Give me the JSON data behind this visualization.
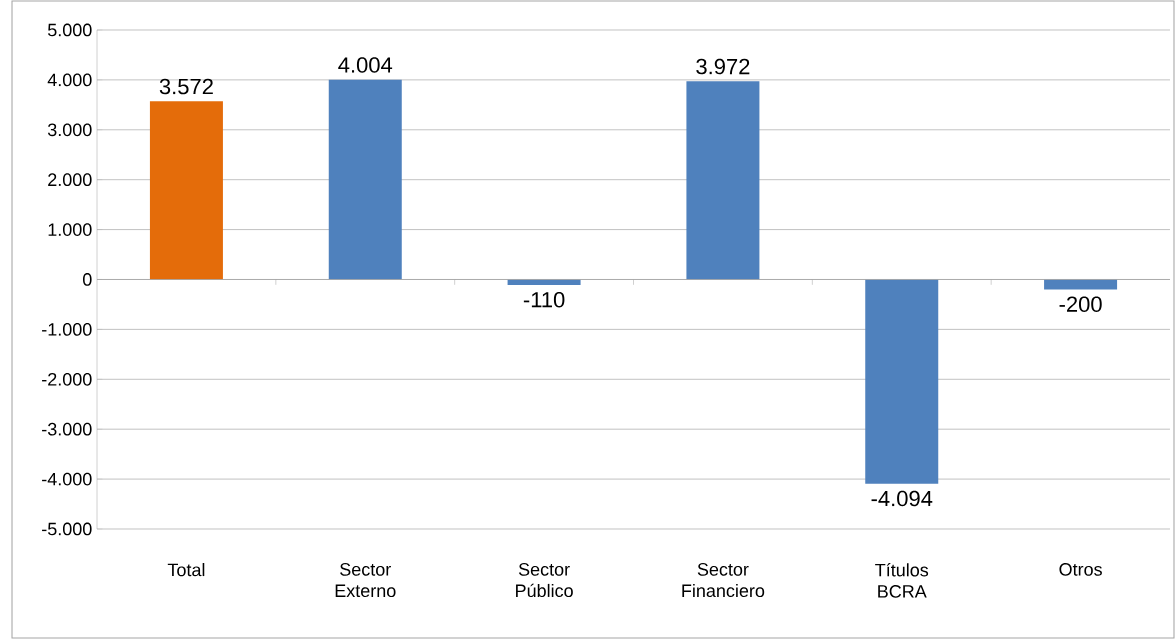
{
  "chart_data": {
    "type": "bar",
    "categories": [
      "Total",
      "Sector Externo",
      "Sector Público",
      "Sector Financiero",
      "Títulos BCRA",
      "Otros"
    ],
    "values": [
      3572,
      4004,
      -110,
      3972,
      -4094,
      -200
    ],
    "value_labels": [
      "3.572",
      "4.004",
      "-110",
      "3.972",
      "-4.094",
      "-200"
    ],
    "colors": [
      "#e46c0a",
      "#4f81bd",
      "#4f81bd",
      "#4f81bd",
      "#4f81bd",
      "#4f81bd"
    ],
    "ylim": [
      -5000,
      5000
    ],
    "yticks": [
      {
        "value": -5000,
        "label": "-5.000"
      },
      {
        "value": -4000,
        "label": "-4.000"
      },
      {
        "value": -3000,
        "label": "-3.000"
      },
      {
        "value": -2000,
        "label": "-2.000"
      },
      {
        "value": -1000,
        "label": "-1.000"
      },
      {
        "value": 0,
        "label": "0"
      },
      {
        "value": 1000,
        "label": "1.000"
      },
      {
        "value": 2000,
        "label": "2.000"
      },
      {
        "value": 3000,
        "label": "3.000"
      },
      {
        "value": 4000,
        "label": "4.000"
      },
      {
        "value": 5000,
        "label": "5.000"
      }
    ],
    "grid": "y"
  }
}
